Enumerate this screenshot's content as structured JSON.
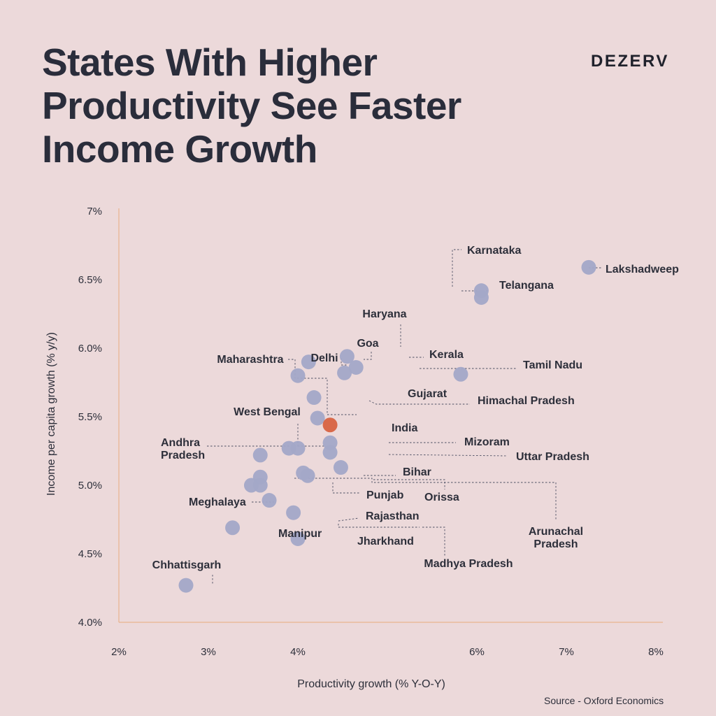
{
  "title": "States With Higher Productivity See Faster Income Growth",
  "brand": "DEZERV",
  "source": "Source - Oxford Economics",
  "colors": {
    "background": "#ecd9da",
    "axis": "#e8b48f",
    "point": "#a3a8c8",
    "highlight": "#d9694a",
    "text": "#2d2f3a"
  },
  "chart_data": {
    "type": "scatter",
    "title": "States With Higher Productivity See Faster Income Growth",
    "xlabel": "Productivity growth (% Y-O-Y)",
    "ylabel": "Income per capita growth (% y/y)",
    "xlim": [
      2,
      8
    ],
    "ylim": [
      4.0,
      7.0
    ],
    "x_ticks": [
      "2%",
      "3%",
      "4%",
      "6%",
      "7%",
      "8%"
    ],
    "y_ticks": [
      "4.0%",
      "4.5%",
      "5.0%",
      "5.5%",
      "6.0%",
      "6.5%",
      "7%"
    ],
    "grid": false,
    "points": [
      {
        "name": "Lakshadweep",
        "x": 7.25,
        "y": 6.59
      },
      {
        "name": "Karnataka",
        "x": 6.05,
        "y": 6.42
      },
      {
        "name": "Telangana",
        "x": 6.05,
        "y": 6.37
      },
      {
        "name": "Haryana",
        "x": 4.55,
        "y": 5.94
      },
      {
        "name": "Kerala",
        "x": 4.65,
        "y": 5.86
      },
      {
        "name": "Tamil Nadu",
        "x": 4.52,
        "y": 5.82
      },
      {
        "name": "Goa",
        "x": 4.12,
        "y": 5.9
      },
      {
        "name": "Delhi",
        "x": 4.0,
        "y": 5.8
      },
      {
        "name": "Gujarat",
        "x": 5.82,
        "y": 5.81
      },
      {
        "name": "Maharashtra",
        "x": 4.18,
        "y": 5.64
      },
      {
        "name": "Himachal Pradesh",
        "x": 4.22,
        "y": 5.49
      },
      {
        "name": "West Bengal",
        "x": 3.58,
        "y": 5.22
      },
      {
        "name": "India",
        "x": 4.36,
        "y": 5.44,
        "highlight": true
      },
      {
        "name": "Andhra Pradesh",
        "x": 3.9,
        "y": 5.27
      },
      {
        "name": "Mizoram",
        "x": 4.36,
        "y": 5.31
      },
      {
        "name": "Uttar Pradesh",
        "x": 4.36,
        "y": 5.24
      },
      {
        "name": "Bihar",
        "x": 4.48,
        "y": 5.13
      },
      {
        "name": "Orissa",
        "x": 4.06,
        "y": 5.09
      },
      {
        "name": "Arunachal Pradesh",
        "x": 4.11,
        "y": 5.07
      },
      {
        "name": "Punjab",
        "x": 3.58,
        "y": 5.06
      },
      {
        "name": "Meghalaya",
        "x": 3.68,
        "y": 4.89
      },
      {
        "name": "Rajasthan",
        "x": 3.95,
        "y": 4.8
      },
      {
        "name": "Manipur",
        "x": 3.27,
        "y": 4.69
      },
      {
        "name": "Jharkhand",
        "x": 4.0,
        "y": 4.61
      },
      {
        "name": "Madhya Pradesh",
        "x": 3.58,
        "y": 5.0
      },
      {
        "name": "Chhattisgarh",
        "x": 2.75,
        "y": 4.27
      }
    ],
    "extra_points": [
      {
        "x": 3.48,
        "y": 5.0
      },
      {
        "x": 4.0,
        "y": 5.27
      }
    ]
  }
}
